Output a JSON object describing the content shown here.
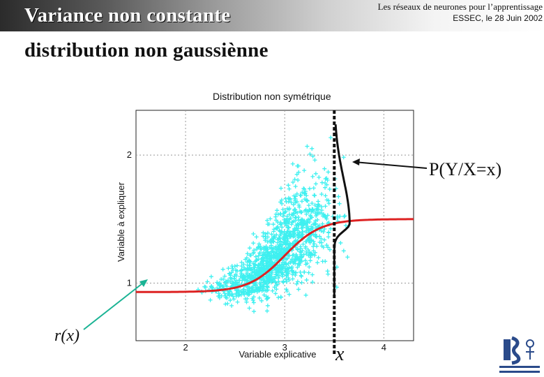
{
  "slide": {
    "title_line1": "Variance non constante",
    "title_line2": "distribution non gaussiènne",
    "header_line1": "Les réseaux de neurones pour l’apprentissage",
    "header_line2": "ESSEC, le 28 Juin 2002",
    "annotation_py": "P(Y/X=x)",
    "annotation_rx": "r(x)",
    "annotation_x": "x"
  },
  "chart_data": {
    "type": "scatter",
    "title": "Distribution non symétrique",
    "xlabel": "Variable explicative",
    "ylabel": "Variable à expliquer",
    "xlim": [
      1.5,
      4.3
    ],
    "ylim": [
      0.55,
      2.35
    ],
    "xticks": [
      2,
      3,
      4
    ],
    "yticks": [
      1,
      2
    ],
    "tick_labels_x": [
      "2",
      "3",
      "4"
    ],
    "tick_labels_y": [
      "1",
      "2"
    ],
    "grid": true,
    "scatter_color": "#3ff0f0",
    "regression_color": "#dd2222",
    "regression_curve": {
      "low": 0.93,
      "high": 1.5,
      "center": 3.0,
      "slope": 5.5
    },
    "cut_x": 3.5
  },
  "colors": {
    "curve": "#dd2222",
    "points": "#3ff0f0",
    "arrow_rx": "#1ab394"
  }
}
